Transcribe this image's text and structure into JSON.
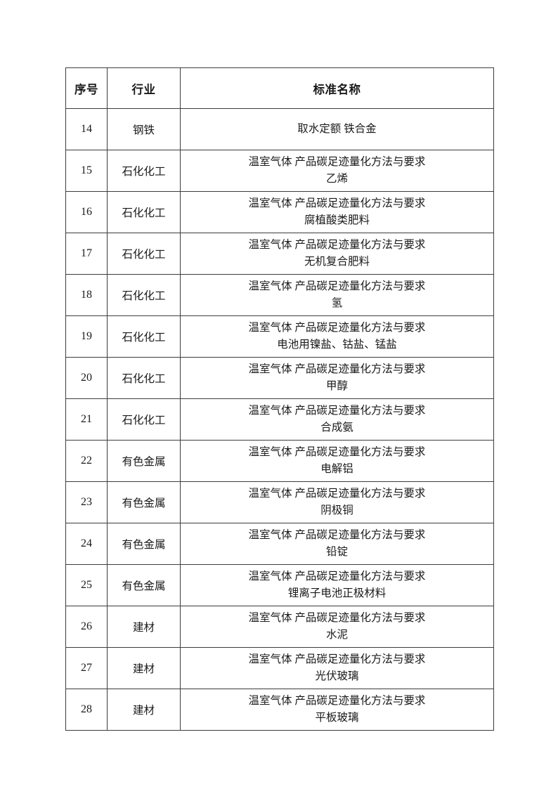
{
  "page": {
    "background_color": "#ffffff",
    "text_color": "#1a1a1a",
    "border_color": "#3c3c3c"
  },
  "table": {
    "columns": [
      {
        "label": "序号"
      },
      {
        "label": "行业"
      },
      {
        "label": "标准名称"
      }
    ],
    "rows": [
      {
        "index": "14",
        "industry": "钢铁",
        "standard_lines": [
          "取水定额 铁合金"
        ]
      },
      {
        "index": "15",
        "industry": "石化化工",
        "standard_lines": [
          "温室气体 产品碳足迹量化方法与要求",
          "乙烯"
        ]
      },
      {
        "index": "16",
        "industry": "石化化工",
        "standard_lines": [
          "温室气体 产品碳足迹量化方法与要求",
          "腐植酸类肥料"
        ]
      },
      {
        "index": "17",
        "industry": "石化化工",
        "standard_lines": [
          "温室气体 产品碳足迹量化方法与要求",
          "无机复合肥料"
        ]
      },
      {
        "index": "18",
        "industry": "石化化工",
        "standard_lines": [
          "温室气体 产品碳足迹量化方法与要求",
          "氢"
        ]
      },
      {
        "index": "19",
        "industry": "石化化工",
        "standard_lines": [
          "温室气体 产品碳足迹量化方法与要求",
          "电池用镍盐、钴盐、锰盐"
        ]
      },
      {
        "index": "20",
        "industry": "石化化工",
        "standard_lines": [
          "温室气体 产品碳足迹量化方法与要求",
          "甲醇"
        ]
      },
      {
        "index": "21",
        "industry": "石化化工",
        "standard_lines": [
          "温室气体 产品碳足迹量化方法与要求",
          "合成氨"
        ]
      },
      {
        "index": "22",
        "industry": "有色金属",
        "standard_lines": [
          "温室气体 产品碳足迹量化方法与要求",
          "电解铝"
        ]
      },
      {
        "index": "23",
        "industry": "有色金属",
        "standard_lines": [
          "温室气体 产品碳足迹量化方法与要求",
          "阴极铜"
        ]
      },
      {
        "index": "24",
        "industry": "有色金属",
        "standard_lines": [
          "温室气体 产品碳足迹量化方法与要求",
          "铅锭"
        ]
      },
      {
        "index": "25",
        "industry": "有色金属",
        "standard_lines": [
          "温室气体 产品碳足迹量化方法与要求",
          "锂离子电池正极材料"
        ]
      },
      {
        "index": "26",
        "industry": "建材",
        "standard_lines": [
          "温室气体 产品碳足迹量化方法与要求",
          "水泥"
        ]
      },
      {
        "index": "27",
        "industry": "建材",
        "standard_lines": [
          "温室气体 产品碳足迹量化方法与要求",
          "光伏玻璃"
        ]
      },
      {
        "index": "28",
        "industry": "建材",
        "standard_lines": [
          "温室气体 产品碳足迹量化方法与要求",
          "平板玻璃"
        ]
      }
    ]
  }
}
